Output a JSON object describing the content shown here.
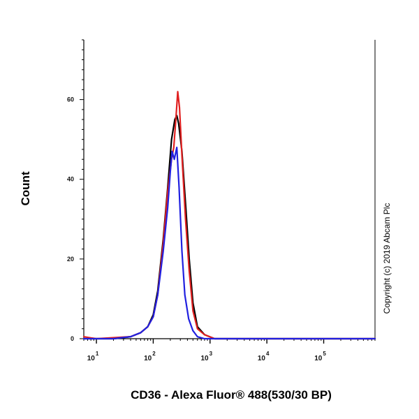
{
  "chart_data": {
    "type": "line",
    "title": "",
    "xlabel": "CD36 - Alexa Fluor® 488(530/30 BP)",
    "ylabel": "Count",
    "x_scale": "log",
    "xlim": [
      6,
      800000
    ],
    "ylim": [
      0,
      75
    ],
    "y_ticks": [
      0,
      20,
      40,
      60
    ],
    "y_tick_labels": [
      "0",
      "20",
      "40",
      "60"
    ],
    "x_ticks": [
      10,
      100,
      1000,
      10000,
      100000
    ],
    "x_tick_labels": [
      {
        "base": "10",
        "exp": "1"
      },
      {
        "base": "10",
        "exp": "2"
      },
      {
        "base": "10",
        "exp": "3"
      },
      {
        "base": "10",
        "exp": "4"
      },
      {
        "base": "10",
        "exp": "5"
      }
    ],
    "grid": false,
    "legend": "none",
    "series": [
      {
        "color": "#000000",
        "points": [
          [
            6,
            0
          ],
          [
            20,
            0
          ],
          [
            40,
            0.5
          ],
          [
            60,
            1.5
          ],
          [
            80,
            3
          ],
          [
            100,
            6
          ],
          [
            120,
            12
          ],
          [
            150,
            25
          ],
          [
            180,
            38
          ],
          [
            210,
            50
          ],
          [
            240,
            55
          ],
          [
            260,
            56
          ],
          [
            280,
            54
          ],
          [
            320,
            47
          ],
          [
            370,
            34
          ],
          [
            430,
            20
          ],
          [
            500,
            9
          ],
          [
            600,
            3
          ],
          [
            800,
            1
          ],
          [
            1200,
            0
          ],
          [
            800000,
            0
          ]
        ]
      },
      {
        "color": "#e02020",
        "points": [
          [
            6,
            0.5
          ],
          [
            8,
            0.2
          ],
          [
            10,
            0
          ],
          [
            40,
            0.5
          ],
          [
            60,
            1.5
          ],
          [
            80,
            3
          ],
          [
            100,
            5.5
          ],
          [
            120,
            11
          ],
          [
            150,
            24
          ],
          [
            180,
            37
          ],
          [
            210,
            45
          ],
          [
            230,
            48
          ],
          [
            250,
            55
          ],
          [
            270,
            62
          ],
          [
            290,
            58
          ],
          [
            320,
            46
          ],
          [
            370,
            30
          ],
          [
            430,
            17
          ],
          [
            500,
            7
          ],
          [
            600,
            2.5
          ],
          [
            800,
            1
          ],
          [
            1200,
            0
          ],
          [
            800000,
            0
          ]
        ]
      },
      {
        "color": "#2020e0",
        "points": [
          [
            6,
            0
          ],
          [
            20,
            0
          ],
          [
            40,
            0.5
          ],
          [
            60,
            1.5
          ],
          [
            80,
            3
          ],
          [
            100,
            5.5
          ],
          [
            120,
            11
          ],
          [
            150,
            22
          ],
          [
            180,
            33
          ],
          [
            200,
            42
          ],
          [
            215,
            47
          ],
          [
            235,
            45
          ],
          [
            260,
            48
          ],
          [
            285,
            38
          ],
          [
            320,
            22
          ],
          [
            360,
            11
          ],
          [
            420,
            5
          ],
          [
            500,
            2
          ],
          [
            600,
            0.5
          ],
          [
            800,
            0
          ],
          [
            800000,
            0
          ]
        ]
      }
    ]
  },
  "side_text": "Copyright (c) 2019 Abcam Plc"
}
